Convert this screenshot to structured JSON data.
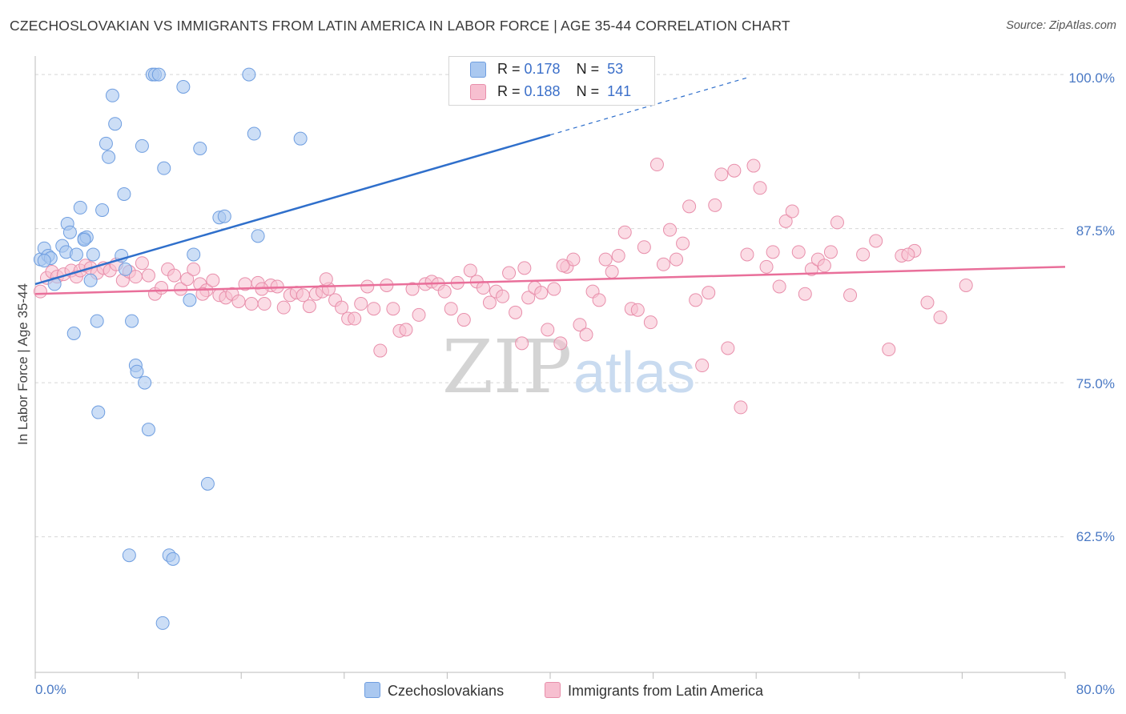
{
  "header": {
    "title": "CZECHOSLOVAKIAN VS IMMIGRANTS FROM LATIN AMERICA IN LABOR FORCE | AGE 35-44 CORRELATION CHART",
    "source": "Source: ZipAtlas.com"
  },
  "watermark": {
    "zip": "ZIP",
    "atlas": "atlas"
  },
  "legend_top": {
    "rows": [
      {
        "r_label": "R = ",
        "r_value": "0.178",
        "n_label": "N = ",
        "n_value": "53",
        "color": "#aac8f0"
      },
      {
        "r_label": "R = ",
        "r_value": "0.188",
        "n_label": "N = ",
        "n_value": "141",
        "color": "#f7bfd0"
      }
    ]
  },
  "legend_bottom": {
    "items": [
      {
        "label": "Czechoslovakians",
        "color": "#aac8f0"
      },
      {
        "label": "Immigrants from Latin America",
        "color": "#f7bfd0"
      }
    ]
  },
  "chart_data": {
    "type": "scatter",
    "title": "CZECHOSLOVAKIAN VS IMMIGRANTS FROM LATIN AMERICA IN LABOR FORCE | AGE 35-44 CORRELATION CHART",
    "xlabel": "",
    "ylabel": "In Labor Force | Age 35-44",
    "xlim": [
      0,
      80
    ],
    "ylim": [
      51.5,
      101.5
    ],
    "x_tick_labels": [
      "0.0%",
      "80.0%"
    ],
    "y_ticks": [
      62.5,
      75.0,
      87.5,
      100.0
    ],
    "y_tick_labels": [
      "62.5%",
      "75.0%",
      "87.5%",
      "100.0%"
    ],
    "grid": "horizontal dashed",
    "legend_position": "top-center",
    "colors": {
      "blue_fill": "#aac8f0",
      "blue_stroke": "#6f9ee0",
      "blue_line": "#2f6fcb",
      "pink_fill": "#f7bfd0",
      "pink_stroke": "#e88fab",
      "pink_line": "#e96f9a"
    },
    "series": [
      {
        "name": "Czechoslovakians",
        "r": 0.178,
        "n": 53,
        "trend": {
          "x": [
            0,
            40
          ],
          "y": [
            83.0,
            95.1
          ],
          "dashed_to": [
            55.5,
            99.8
          ]
        },
        "points": [
          [
            0.4,
            85.0
          ],
          [
            0.7,
            85.9
          ],
          [
            1.0,
            85.3
          ],
          [
            1.2,
            85.1
          ],
          [
            1.5,
            83.0
          ],
          [
            2.1,
            86.1
          ],
          [
            2.4,
            85.6
          ],
          [
            2.5,
            87.9
          ],
          [
            2.7,
            87.2
          ],
          [
            3.0,
            79.0
          ],
          [
            3.2,
            85.4
          ],
          [
            3.5,
            89.2
          ],
          [
            3.8,
            86.7
          ],
          [
            4.0,
            86.8
          ],
          [
            4.3,
            83.3
          ],
          [
            4.5,
            85.4
          ],
          [
            4.8,
            80.0
          ],
          [
            4.9,
            72.6
          ],
          [
            5.2,
            89.0
          ],
          [
            5.5,
            94.4
          ],
          [
            5.7,
            93.3
          ],
          [
            6.0,
            98.3
          ],
          [
            6.2,
            96.0
          ],
          [
            6.7,
            85.3
          ],
          [
            6.9,
            90.3
          ],
          [
            7.0,
            84.2
          ],
          [
            7.3,
            61.0
          ],
          [
            7.5,
            80.0
          ],
          [
            7.8,
            76.4
          ],
          [
            7.9,
            75.9
          ],
          [
            8.3,
            94.2
          ],
          [
            8.5,
            75.0
          ],
          [
            8.8,
            71.2
          ],
          [
            9.1,
            100.0
          ],
          [
            9.3,
            100.0
          ],
          [
            9.6,
            100.0
          ],
          [
            10.0,
            92.4
          ],
          [
            10.4,
            61.0
          ],
          [
            10.7,
            60.7
          ],
          [
            11.5,
            99.0
          ],
          [
            12.0,
            81.7
          ],
          [
            12.8,
            94.0
          ],
          [
            13.4,
            66.8
          ],
          [
            14.3,
            88.4
          ],
          [
            14.7,
            88.5
          ],
          [
            16.6,
            100.0
          ],
          [
            17.0,
            95.2
          ],
          [
            17.3,
            86.9
          ],
          [
            20.6,
            94.8
          ],
          [
            0.7,
            84.9
          ],
          [
            9.9,
            55.5
          ],
          [
            12.3,
            85.4
          ],
          [
            3.8,
            86.6
          ]
        ]
      },
      {
        "name": "Immigrants from Latin America",
        "r": 0.188,
        "n": 141,
        "trend": {
          "x": [
            0,
            80
          ],
          "y": [
            82.2,
            84.4
          ]
        },
        "points": [
          [
            0.4,
            82.4
          ],
          [
            0.9,
            83.5
          ],
          [
            1.3,
            84.0
          ],
          [
            1.7,
            83.6
          ],
          [
            2.2,
            83.8
          ],
          [
            2.8,
            84.1
          ],
          [
            3.2,
            83.6
          ],
          [
            3.5,
            84.1
          ],
          [
            3.9,
            84.5
          ],
          [
            4.3,
            84.3
          ],
          [
            4.8,
            83.9
          ],
          [
            5.3,
            84.3
          ],
          [
            5.8,
            84.1
          ],
          [
            6.3,
            84.6
          ],
          [
            6.8,
            83.3
          ],
          [
            7.3,
            84.0
          ],
          [
            7.8,
            83.6
          ],
          [
            8.3,
            84.7
          ],
          [
            8.8,
            83.7
          ],
          [
            9.3,
            82.2
          ],
          [
            9.8,
            82.7
          ],
          [
            10.3,
            84.2
          ],
          [
            10.8,
            83.7
          ],
          [
            11.3,
            82.6
          ],
          [
            11.8,
            83.4
          ],
          [
            12.3,
            84.2
          ],
          [
            12.8,
            83.0
          ],
          [
            13.3,
            82.5
          ],
          [
            13.8,
            83.3
          ],
          [
            14.3,
            82.1
          ],
          [
            14.8,
            81.9
          ],
          [
            15.3,
            82.2
          ],
          [
            15.8,
            81.6
          ],
          [
            16.3,
            83.0
          ],
          [
            16.8,
            81.4
          ],
          [
            17.3,
            83.1
          ],
          [
            17.8,
            81.4
          ],
          [
            18.3,
            82.9
          ],
          [
            18.8,
            82.8
          ],
          [
            19.3,
            81.1
          ],
          [
            19.8,
            82.1
          ],
          [
            20.3,
            82.3
          ],
          [
            20.8,
            82.1
          ],
          [
            21.3,
            81.2
          ],
          [
            21.8,
            82.2
          ],
          [
            22.3,
            82.4
          ],
          [
            22.8,
            82.6
          ],
          [
            23.3,
            81.7
          ],
          [
            23.8,
            81.1
          ],
          [
            24.3,
            80.2
          ],
          [
            24.8,
            80.2
          ],
          [
            25.3,
            81.4
          ],
          [
            25.8,
            82.8
          ],
          [
            26.3,
            81.0
          ],
          [
            26.8,
            77.6
          ],
          [
            27.3,
            82.9
          ],
          [
            27.8,
            81.0
          ],
          [
            28.3,
            79.2
          ],
          [
            28.8,
            79.3
          ],
          [
            29.3,
            82.6
          ],
          [
            29.8,
            80.5
          ],
          [
            30.3,
            83.0
          ],
          [
            30.8,
            83.2
          ],
          [
            31.3,
            83.0
          ],
          [
            31.8,
            82.4
          ],
          [
            32.3,
            81.0
          ],
          [
            32.8,
            83.1
          ],
          [
            33.3,
            80.1
          ],
          [
            33.8,
            84.1
          ],
          [
            34.3,
            83.2
          ],
          [
            34.8,
            82.7
          ],
          [
            35.3,
            81.5
          ],
          [
            35.8,
            82.4
          ],
          [
            36.3,
            82.0
          ],
          [
            36.8,
            83.9
          ],
          [
            37.3,
            80.7
          ],
          [
            37.8,
            78.2
          ],
          [
            38.3,
            81.9
          ],
          [
            38.8,
            82.7
          ],
          [
            39.3,
            82.3
          ],
          [
            39.8,
            79.3
          ],
          [
            40.3,
            82.6
          ],
          [
            40.8,
            78.2
          ],
          [
            41.3,
            84.4
          ],
          [
            41.8,
            85.0
          ],
          [
            42.3,
            79.7
          ],
          [
            42.8,
            78.9
          ],
          [
            43.3,
            82.4
          ],
          [
            43.8,
            81.7
          ],
          [
            44.3,
            85.0
          ],
          [
            44.8,
            84.0
          ],
          [
            45.3,
            85.3
          ],
          [
            45.8,
            87.2
          ],
          [
            46.3,
            81.0
          ],
          [
            46.8,
            80.9
          ],
          [
            47.3,
            86.0
          ],
          [
            47.8,
            79.9
          ],
          [
            48.3,
            92.7
          ],
          [
            48.8,
            84.6
          ],
          [
            49.3,
            87.4
          ],
          [
            49.8,
            85.0
          ],
          [
            50.3,
            86.3
          ],
          [
            50.8,
            89.3
          ],
          [
            51.3,
            81.7
          ],
          [
            51.8,
            76.4
          ],
          [
            52.3,
            82.3
          ],
          [
            52.8,
            89.4
          ],
          [
            53.3,
            91.9
          ],
          [
            53.8,
            77.8
          ],
          [
            54.3,
            92.2
          ],
          [
            54.8,
            73.0
          ],
          [
            55.3,
            85.4
          ],
          [
            55.8,
            92.6
          ],
          [
            56.3,
            90.8
          ],
          [
            56.8,
            84.4
          ],
          [
            57.3,
            85.6
          ],
          [
            57.8,
            82.8
          ],
          [
            58.3,
            88.1
          ],
          [
            58.8,
            88.9
          ],
          [
            59.3,
            85.6
          ],
          [
            59.8,
            82.2
          ],
          [
            60.3,
            84.2
          ],
          [
            60.8,
            85.0
          ],
          [
            61.3,
            84.5
          ],
          [
            61.8,
            85.6
          ],
          [
            62.3,
            88.0
          ],
          [
            63.3,
            82.1
          ],
          [
            64.3,
            85.4
          ],
          [
            65.3,
            86.5
          ],
          [
            66.3,
            77.7
          ],
          [
            67.3,
            85.3
          ],
          [
            68.3,
            85.7
          ],
          [
            69.3,
            81.5
          ],
          [
            70.3,
            80.3
          ],
          [
            72.3,
            82.9
          ],
          [
            67.8,
            85.4
          ],
          [
            41.0,
            84.5
          ],
          [
            38.0,
            84.3
          ],
          [
            22.6,
            83.4
          ],
          [
            17.6,
            82.6
          ],
          [
            13.0,
            82.2
          ]
        ]
      }
    ]
  }
}
